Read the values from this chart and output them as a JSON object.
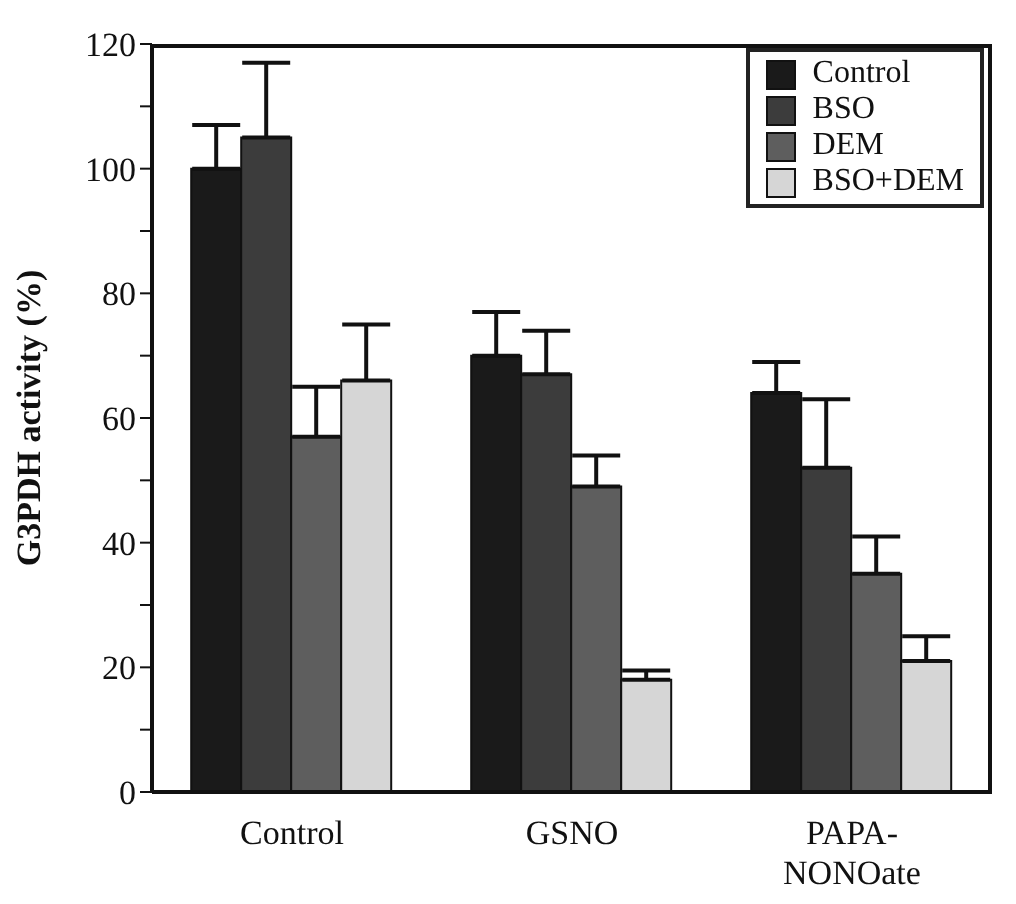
{
  "chart_data": {
    "type": "bar",
    "ylabel": "G3PDH activity (%)",
    "categories": [
      "Control",
      "GSNO",
      "PAPA-NONOate"
    ],
    "series": [
      {
        "name": "Control",
        "color": "#1a1a1a",
        "values": [
          100,
          70,
          64
        ],
        "errors": [
          [
            100,
            107
          ],
          [
            70,
            77
          ],
          [
            64,
            69
          ]
        ]
      },
      {
        "name": "BSO",
        "color": "#3c3c3c",
        "values": [
          105,
          67,
          52
        ],
        "errors": [
          [
            105,
            117
          ],
          [
            67,
            74
          ],
          [
            52,
            63
          ]
        ]
      },
      {
        "name": "DEM",
        "color": "#5e5e5e",
        "values": [
          57,
          49,
          35
        ],
        "errors": [
          [
            57,
            65
          ],
          [
            49,
            54
          ],
          [
            35,
            41
          ]
        ]
      },
      {
        "name": "BSO+DEM",
        "color": "#d6d6d6",
        "values": [
          66,
          18,
          21
        ],
        "errors": [
          [
            66,
            75
          ],
          [
            18,
            19.5
          ],
          [
            21,
            25
          ]
        ]
      }
    ],
    "ylim": [
      0,
      120
    ],
    "yticks": [
      0,
      {
        "value": 10,
        "label": null
      },
      20,
      {
        "value": 30,
        "label": null
      },
      40,
      {
        "value": 50,
        "label": null
      },
      60,
      {
        "value": 70,
        "label": null
      },
      80,
      {
        "value": 90,
        "label": null
      },
      100,
      {
        "value": 110,
        "label": null
      },
      120
    ],
    "legend": "top right",
    "grid": false
  }
}
